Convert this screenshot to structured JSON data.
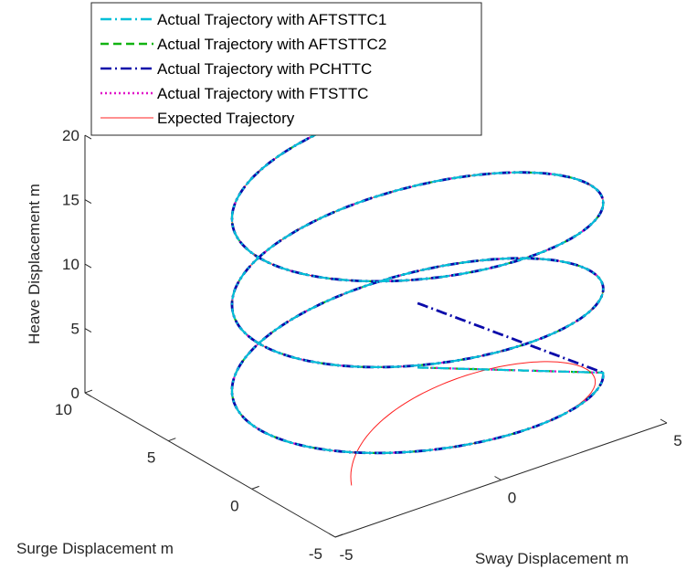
{
  "chart_data": {
    "type": "line",
    "projection": "3d",
    "xlabel": "Sway Displacement m",
    "ylabel": "Surge Displacement m",
    "zlabel": "Heave Displacement m",
    "xlim": [
      -5,
      5
    ],
    "ylim": [
      -5,
      10
    ],
    "zlim": [
      0,
      20
    ],
    "x_ticks": [
      "-5",
      "0",
      "5"
    ],
    "y_ticks": [
      "-5",
      "0",
      "5",
      "10"
    ],
    "z_ticks": [
      "0",
      "5",
      "10",
      "15",
      "20"
    ],
    "grid": false,
    "legend_position": "top-left",
    "reference": {
      "description": "helix",
      "x_amplitude": 5,
      "y_amplitude": 5,
      "turns": 3,
      "z_range": [
        0,
        20
      ]
    },
    "series": [
      {
        "name": "Actual Trajectory with AFTSTTC1",
        "color": "#00BFD8",
        "dash": "dashdot",
        "start": [
          0,
          0,
          5
        ]
      },
      {
        "name": "Actual Trajectory with AFTSTTC2",
        "color": "#12B312",
        "dash": "dashed",
        "start": [
          0,
          0,
          5
        ]
      },
      {
        "name": "Actual Trajectory with PCHTTC",
        "color": "#0A0AAA",
        "dash": "dashdot",
        "start": [
          0,
          0,
          10
        ]
      },
      {
        "name": "Actual Trajectory with FTSTTC",
        "color": "#E010C8",
        "dash": "dotted",
        "start": [
          0,
          0,
          5
        ]
      },
      {
        "name": "Expected Trajectory",
        "color": "#FF2020",
        "dash": "solid",
        "start": [
          -3,
          -2,
          0
        ]
      }
    ]
  }
}
